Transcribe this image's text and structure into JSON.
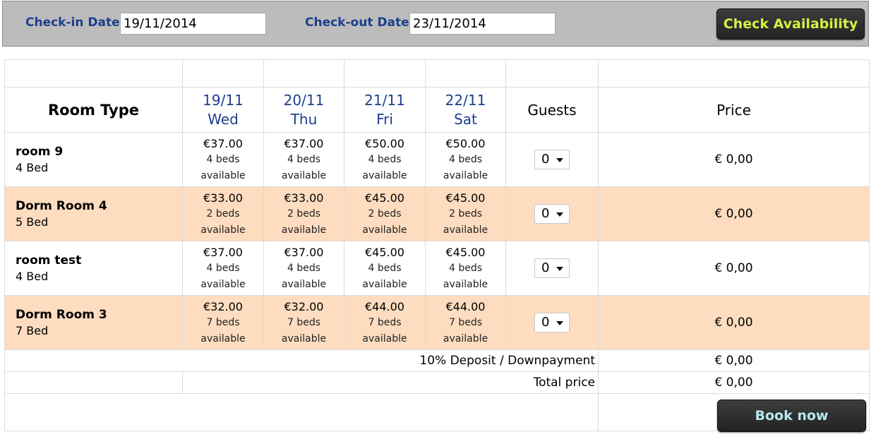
{
  "search": {
    "checkin_label": "Check-in Date",
    "checkin_value": "19/11/2014",
    "checkout_label": "Check-out Date",
    "checkout_value": "23/11/2014",
    "check_button": "Check Availability"
  },
  "table": {
    "room_type_header": "Room Type",
    "guests_header": "Guests",
    "price_header": "Price",
    "days": [
      {
        "date": "19/11",
        "weekday": "Wed"
      },
      {
        "date": "20/11",
        "weekday": "Thu"
      },
      {
        "date": "21/11",
        "weekday": "Fri"
      },
      {
        "date": "22/11",
        "weekday": "Sat"
      }
    ],
    "rooms": [
      {
        "name": "room 9",
        "beds": "4 Bed",
        "nights": [
          {
            "price": "€37.00",
            "avail": "4 beds",
            "status": "available"
          },
          {
            "price": "€37.00",
            "avail": "4 beds",
            "status": "available"
          },
          {
            "price": "€50.00",
            "avail": "4 beds",
            "status": "available"
          },
          {
            "price": "€50.00",
            "avail": "4 beds",
            "status": "available"
          }
        ],
        "guests": "0",
        "price": "€ 0,00"
      },
      {
        "name": "Dorm Room 4",
        "beds": "5 Bed",
        "nights": [
          {
            "price": "€33.00",
            "avail": "2 beds",
            "status": "available"
          },
          {
            "price": "€33.00",
            "avail": "2 beds",
            "status": "available"
          },
          {
            "price": "€45.00",
            "avail": "2 beds",
            "status": "available"
          },
          {
            "price": "€45.00",
            "avail": "2 beds",
            "status": "available"
          }
        ],
        "guests": "0",
        "price": "€ 0,00"
      },
      {
        "name": "room test",
        "beds": "4 Bed",
        "nights": [
          {
            "price": "€37.00",
            "avail": "4 beds",
            "status": "available"
          },
          {
            "price": "€37.00",
            "avail": "4 beds",
            "status": "available"
          },
          {
            "price": "€45.00",
            "avail": "4 beds",
            "status": "available"
          },
          {
            "price": "€45.00",
            "avail": "4 beds",
            "status": "available"
          }
        ],
        "guests": "0",
        "price": "€ 0,00"
      },
      {
        "name": "Dorm Room 3",
        "beds": "7 Bed",
        "nights": [
          {
            "price": "€32.00",
            "avail": "7 beds",
            "status": "available"
          },
          {
            "price": "€32.00",
            "avail": "7 beds",
            "status": "available"
          },
          {
            "price": "€44.00",
            "avail": "7 beds",
            "status": "available"
          },
          {
            "price": "€44.00",
            "avail": "7 beds",
            "status": "available"
          }
        ],
        "guests": "0",
        "price": "€ 0,00"
      }
    ],
    "deposit_label": "10% Deposit / Downpayment",
    "deposit_value": "€ 0,00",
    "total_label": "Total price",
    "total_value": "€ 0,00"
  },
  "book_button": "Book now",
  "colors": {
    "header_blue": "#1c3f8c",
    "row_highlight": "#fddcbf",
    "check_button_text": "#d3f245",
    "book_button_text": "#b6e8ef"
  },
  "icons": {
    "select_arrow": "chevron-down-icon"
  }
}
